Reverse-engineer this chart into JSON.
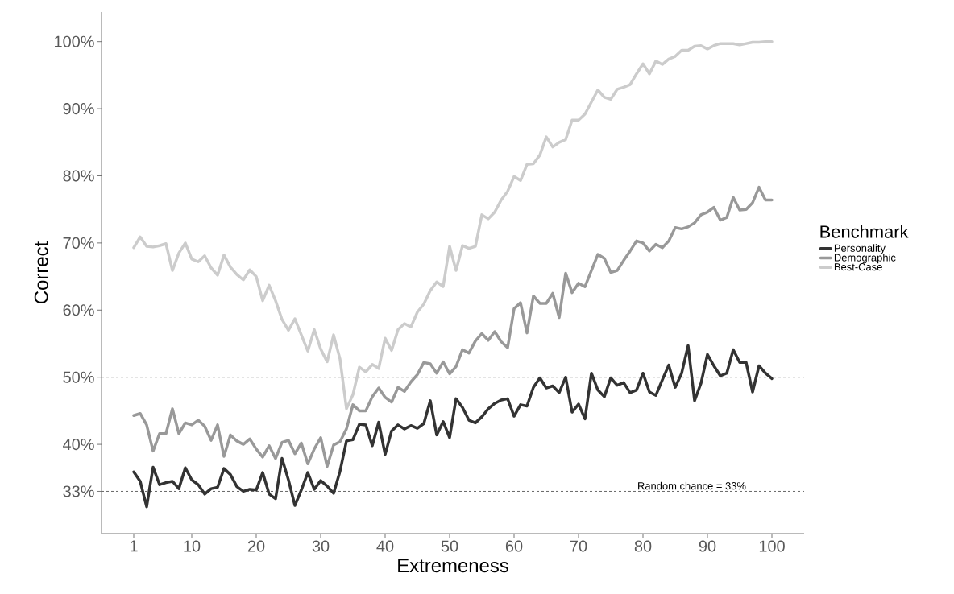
{
  "chart_data": {
    "type": "line",
    "xlabel": "Extremeness",
    "ylabel": "Correct",
    "legend_title": "Benchmark",
    "legend": "right",
    "x": [
      1,
      2,
      3,
      4,
      5,
      6,
      7,
      8,
      9,
      10,
      11,
      12,
      13,
      14,
      15,
      16,
      17,
      18,
      19,
      20,
      21,
      22,
      23,
      24,
      25,
      26,
      27,
      28,
      29,
      30,
      31,
      32,
      33,
      34,
      35,
      36,
      37,
      38,
      39,
      40,
      41,
      42,
      43,
      44,
      45,
      46,
      47,
      48,
      49,
      50,
      51,
      52,
      53,
      54,
      55,
      56,
      57,
      58,
      59,
      60,
      61,
      62,
      63,
      64,
      65,
      66,
      67,
      68,
      69,
      70,
      71,
      72,
      73,
      74,
      75,
      76,
      77,
      78,
      79,
      80,
      81,
      82,
      83,
      84,
      85,
      86,
      87,
      88,
      89,
      90,
      91,
      92,
      93,
      94,
      95,
      96,
      97,
      98,
      99,
      100
    ],
    "series": [
      {
        "name": "Personality",
        "color": "#333333",
        "values": [
          35.9,
          34.5,
          30.7,
          36.6,
          34.0,
          34.3,
          34.5,
          33.4,
          36.5,
          34.7,
          34.0,
          32.6,
          33.4,
          33.6,
          36.4,
          35.5,
          33.7,
          33.0,
          33.3,
          33.2,
          35.8,
          32.6,
          31.9,
          37.9,
          34.7,
          30.9,
          33.2,
          35.8,
          33.3,
          34.6,
          33.8,
          32.7,
          36.0,
          40.5,
          40.7,
          43.0,
          42.9,
          39.8,
          43.3,
          38.5,
          42.0,
          42.9,
          42.3,
          42.8,
          42.4,
          43.1,
          46.5,
          41.4,
          43.4,
          41.0,
          46.8,
          45.5,
          43.6,
          43.2,
          44.1,
          45.3,
          46.1,
          46.6,
          46.8,
          44.2,
          45.9,
          45.7,
          48.5,
          49.9,
          48.4,
          48.7,
          47.7,
          50.0,
          44.8,
          46.0,
          43.8,
          50.6,
          48.1,
          47.1,
          49.9,
          48.8,
          49.2,
          47.7,
          48.1,
          50.6,
          47.8,
          47.3,
          49.6,
          51.8,
          48.5,
          50.6,
          54.7,
          46.5,
          49.1,
          53.4,
          51.7,
          50.2,
          50.6,
          54.1,
          52.2,
          52.2,
          47.8,
          51.7,
          50.6,
          49.8
        ]
      },
      {
        "name": "Demographic",
        "color": "#999999",
        "values": [
          44.3,
          44.6,
          42.9,
          39.0,
          41.6,
          41.6,
          45.3,
          41.6,
          43.2,
          42.9,
          43.6,
          42.7,
          40.6,
          42.9,
          38.2,
          41.4,
          40.5,
          40.0,
          40.8,
          39.3,
          38.1,
          39.8,
          37.9,
          40.3,
          40.6,
          38.6,
          40.2,
          37.1,
          39.3,
          41.0,
          36.7,
          39.9,
          40.4,
          42.3,
          45.9,
          45.0,
          45.0,
          47.1,
          48.4,
          47.0,
          46.3,
          48.5,
          47.9,
          49.3,
          50.4,
          52.2,
          52.0,
          50.6,
          52.3,
          50.5,
          51.6,
          54.1,
          53.6,
          55.4,
          56.5,
          55.5,
          56.8,
          55.3,
          54.4,
          60.2,
          61.1,
          56.6,
          62.1,
          61.0,
          61.0,
          62.5,
          58.9,
          65.5,
          62.6,
          64.0,
          63.5,
          65.9,
          68.3,
          67.7,
          65.6,
          65.9,
          67.4,
          68.8,
          70.3,
          70.0,
          68.8,
          69.8,
          69.3,
          70.3,
          72.3,
          72.1,
          72.4,
          73.0,
          74.2,
          74.6,
          75.3,
          73.4,
          73.8,
          76.8,
          74.9,
          75.0,
          76.0,
          78.3,
          76.4,
          76.4
        ]
      },
      {
        "name": "Best-Case",
        "color": "#cccccc",
        "values": [
          69.3,
          70.9,
          69.5,
          69.4,
          69.6,
          69.9,
          65.9,
          68.5,
          70.0,
          67.6,
          67.2,
          68.1,
          66.3,
          65.2,
          68.2,
          66.4,
          65.3,
          64.5,
          66.0,
          65.0,
          61.4,
          63.7,
          61.4,
          58.6,
          57.0,
          58.7,
          56.3,
          53.9,
          57.1,
          54.2,
          52.3,
          56.3,
          52.7,
          45.3,
          47.4,
          51.5,
          50.8,
          51.9,
          51.3,
          55.8,
          54.0,
          57.1,
          58.0,
          57.5,
          59.7,
          60.9,
          62.9,
          64.2,
          63.5,
          69.5,
          65.9,
          69.6,
          69.2,
          69.5,
          74.2,
          73.6,
          74.6,
          76.4,
          77.7,
          79.9,
          79.3,
          81.7,
          81.8,
          83.1,
          85.8,
          84.3,
          85.0,
          85.4,
          88.3,
          88.3,
          89.2,
          91.0,
          92.8,
          91.7,
          91.4,
          92.9,
          93.2,
          93.6,
          95.2,
          96.7,
          95.2,
          97.1,
          96.6,
          97.4,
          97.8,
          98.7,
          98.7,
          99.3,
          99.4,
          98.9,
          99.4,
          99.7,
          99.7,
          99.7,
          99.5,
          99.7,
          99.9,
          99.9,
          100.0,
          100.0
        ]
      }
    ],
    "xlim": [
      -4,
      105
    ],
    "ylim": [
      26.7,
      104.4
    ],
    "xticks": [
      1,
      10,
      20,
      30,
      40,
      50,
      60,
      70,
      80,
      90,
      100
    ],
    "yticks": [
      {
        "value": 33,
        "label": "33%"
      },
      {
        "value": 40,
        "label": "40%"
      },
      {
        "value": 50,
        "label": "50%"
      },
      {
        "value": 60,
        "label": "60%"
      },
      {
        "value": 70,
        "label": "70%"
      },
      {
        "value": 80,
        "label": "80%"
      },
      {
        "value": 90,
        "label": "90%"
      },
      {
        "value": 100,
        "label": "100%"
      }
    ],
    "ref_lines": [
      {
        "axis": "y",
        "value": 50,
        "color": "#555555",
        "line_style": "dashed"
      },
      {
        "axis": "y",
        "value": 33,
        "color": "#555555",
        "line_style": "dashed",
        "label": "Random chance = 33%"
      }
    ]
  }
}
